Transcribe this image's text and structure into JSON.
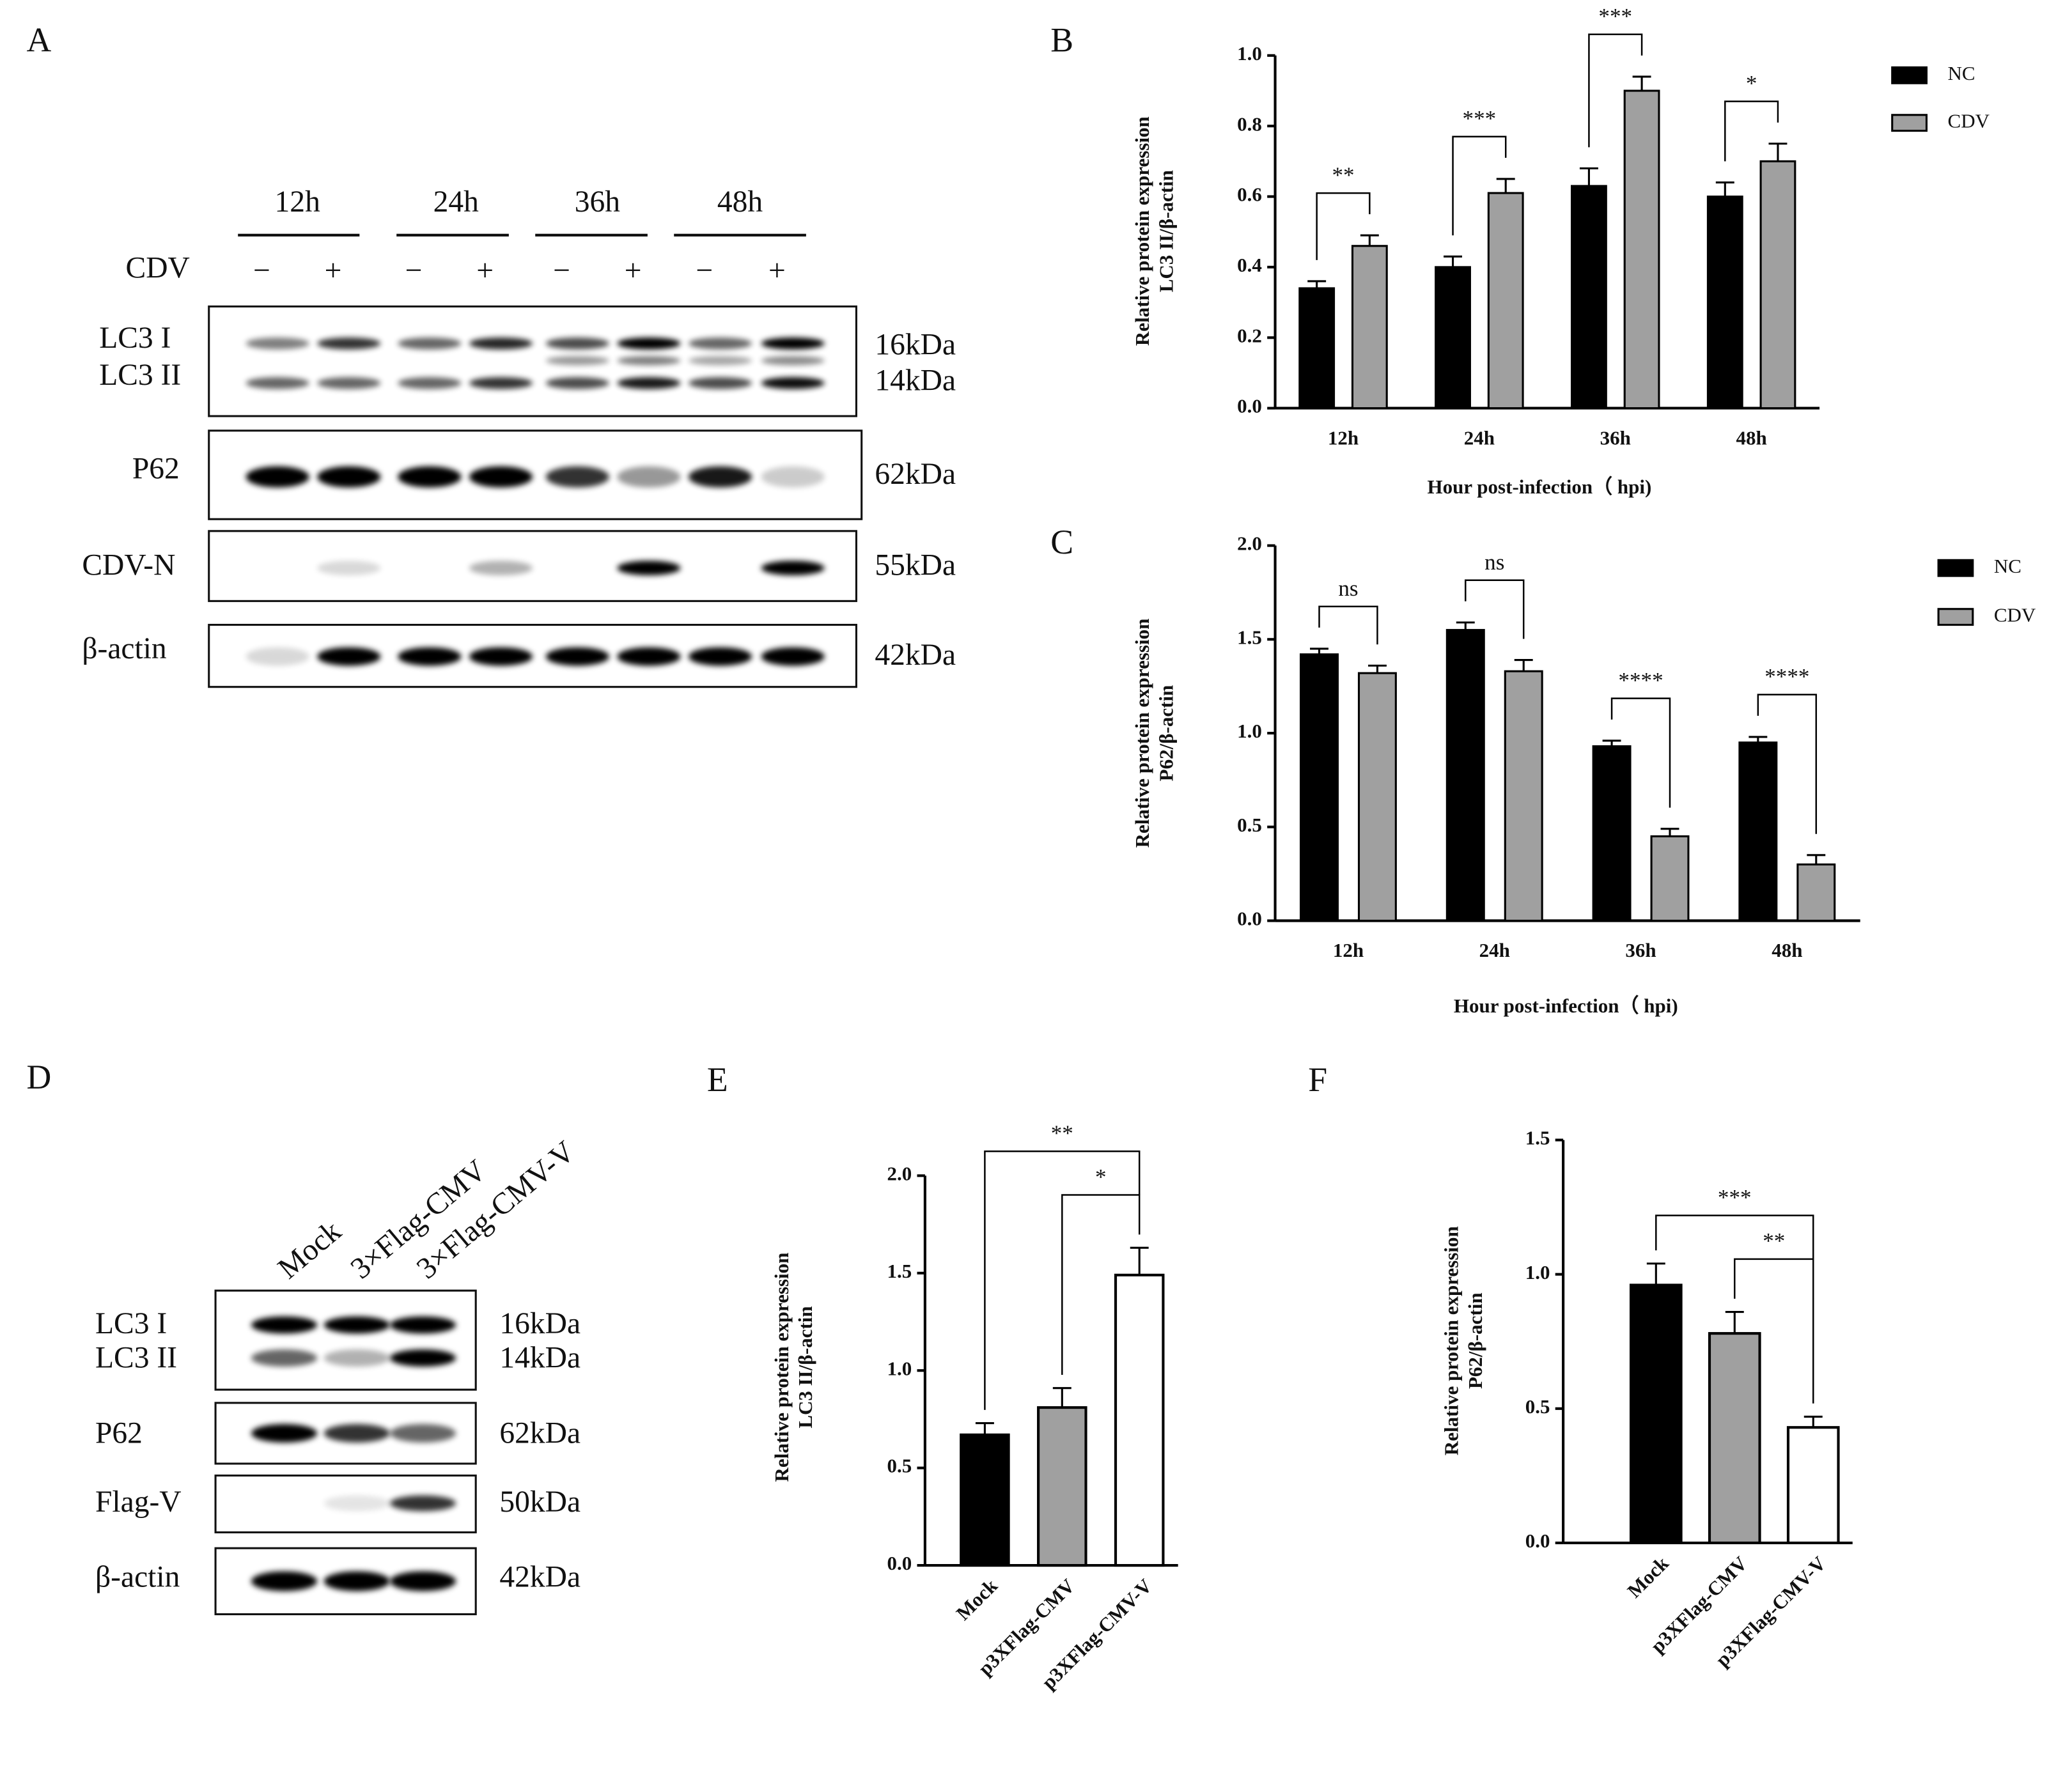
{
  "blots": [
    {
      "panel": "A",
      "time_labels": [
        "12h",
        "24h",
        "36h",
        "48h"
      ],
      "treatment_label": "CDV",
      "treatment_marks": [
        "−",
        "+",
        "−",
        "+",
        "−",
        "+",
        "−",
        "+"
      ],
      "rows": [
        {
          "labels": [
            "LC3 I",
            "LC3 II"
          ],
          "sizes": [
            "16kDa",
            "14kDa"
          ]
        },
        {
          "labels": [
            "P62"
          ],
          "sizes": [
            "62kDa"
          ]
        },
        {
          "labels": [
            "CDV-N"
          ],
          "sizes": [
            "55kDa"
          ]
        },
        {
          "labels": [
            "β-actin"
          ],
          "sizes": [
            "42kDa"
          ]
        }
      ]
    },
    {
      "panel": "D",
      "lane_labels": [
        "Mock",
        "3×Flag-CMV",
        "3×Flag-CMV-V"
      ],
      "rows": [
        {
          "labels": [
            "LC3 I",
            "LC3 II"
          ],
          "sizes": [
            "16kDa",
            "14kDa"
          ]
        },
        {
          "labels": [
            "P62"
          ],
          "sizes": [
            "62kDa"
          ]
        },
        {
          "labels": [
            "Flag-V"
          ],
          "sizes": [
            "50kDa"
          ]
        },
        {
          "labels": [
            "β-actin"
          ],
          "sizes": [
            "42kDa"
          ]
        }
      ]
    }
  ],
  "chart_data": [
    {
      "type": "grouped-bar",
      "panel": "B",
      "ylabel": [
        "Relative protein expression",
        "LC3 II/β-actin"
      ],
      "xlabel": "Hour post-infection（ hpi)",
      "categories": [
        "12h",
        "24h",
        "36h",
        "48h"
      ],
      "series": [
        {
          "name": "NC",
          "color": "#000000",
          "values": [
            0.34,
            0.4,
            0.63,
            0.6
          ],
          "errors": [
            0.02,
            0.03,
            0.05,
            0.04
          ]
        },
        {
          "name": "CDV",
          "color": "#a0a0a0",
          "values": [
            0.46,
            0.61,
            0.9,
            0.7
          ],
          "errors": [
            0.03,
            0.04,
            0.04,
            0.05
          ]
        }
      ],
      "significance": [
        "**",
        "***",
        "***",
        "*"
      ],
      "ylim": [
        0,
        1
      ],
      "yticks": [
        {
          "value": 0,
          "label": "0.0"
        },
        0.2,
        0.4,
        0.6,
        0.8,
        {
          "value": 1,
          "label": "1.0"
        }
      ],
      "legend": "upper right"
    },
    {
      "type": "grouped-bar",
      "panel": "C",
      "ylabel": [
        "Relative protein expression",
        "P62/β-actin"
      ],
      "xlabel": "Hour post-infection（ hpi)",
      "categories": [
        "12h",
        "24h",
        "36h",
        "48h"
      ],
      "series": [
        {
          "name": "NC",
          "color": "#000000",
          "values": [
            1.42,
            1.55,
            0.93,
            0.95
          ],
          "errors": [
            0.03,
            0.04,
            0.03,
            0.03
          ]
        },
        {
          "name": "CDV",
          "color": "#a0a0a0",
          "values": [
            1.32,
            1.33,
            0.45,
            0.3
          ],
          "errors": [
            0.04,
            0.06,
            0.04,
            0.05
          ]
        }
      ],
      "significance": [
        "ns",
        "ns",
        "****",
        "****"
      ],
      "ylim": [
        0,
        2
      ],
      "yticks": [
        {
          "value": 0,
          "label": "0.0"
        },
        0.5,
        {
          "value": 1,
          "label": "1.0"
        },
        1.5,
        {
          "value": 2,
          "label": "2.0"
        }
      ],
      "legend": "upper right"
    },
    {
      "type": "bar",
      "panel": "E",
      "ylabel": [
        "Relative protein expression",
        "LC3 II/β-actin"
      ],
      "categories": [
        "Mock",
        "p3XFlag-CMV",
        "p3XFlag-CMV-V"
      ],
      "values": [
        0.67,
        0.81,
        1.49
      ],
      "errors": [
        0.06,
        0.1,
        0.14
      ],
      "colors": [
        "#000000",
        "#a0a0a0",
        "#ffffff"
      ],
      "significance": [
        "**",
        "*"
      ],
      "ylim": [
        0,
        2
      ],
      "yticks": [
        {
          "value": 0,
          "label": "0.0"
        },
        0.5,
        {
          "value": 1,
          "label": "1.0"
        },
        1.5,
        {
          "value": 2,
          "label": "2.0"
        }
      ]
    },
    {
      "type": "bar",
      "panel": "F",
      "ylabel": [
        "Relative protein expression",
        "P62/β-actin"
      ],
      "categories": [
        "Mock",
        "p3XFlag-CMV",
        "p3XFlag-CMV-V"
      ],
      "values": [
        0.96,
        0.78,
        0.43
      ],
      "errors": [
        0.08,
        0.08,
        0.04
      ],
      "colors": [
        "#000000",
        "#a0a0a0",
        "#ffffff"
      ],
      "significance": [
        "***",
        "**"
      ],
      "ylim": [
        0,
        1.5
      ],
      "yticks": [
        {
          "value": 0,
          "label": "0.0"
        },
        0.5,
        {
          "value": 1,
          "label": "1.0"
        },
        1.5
      ]
    }
  ]
}
